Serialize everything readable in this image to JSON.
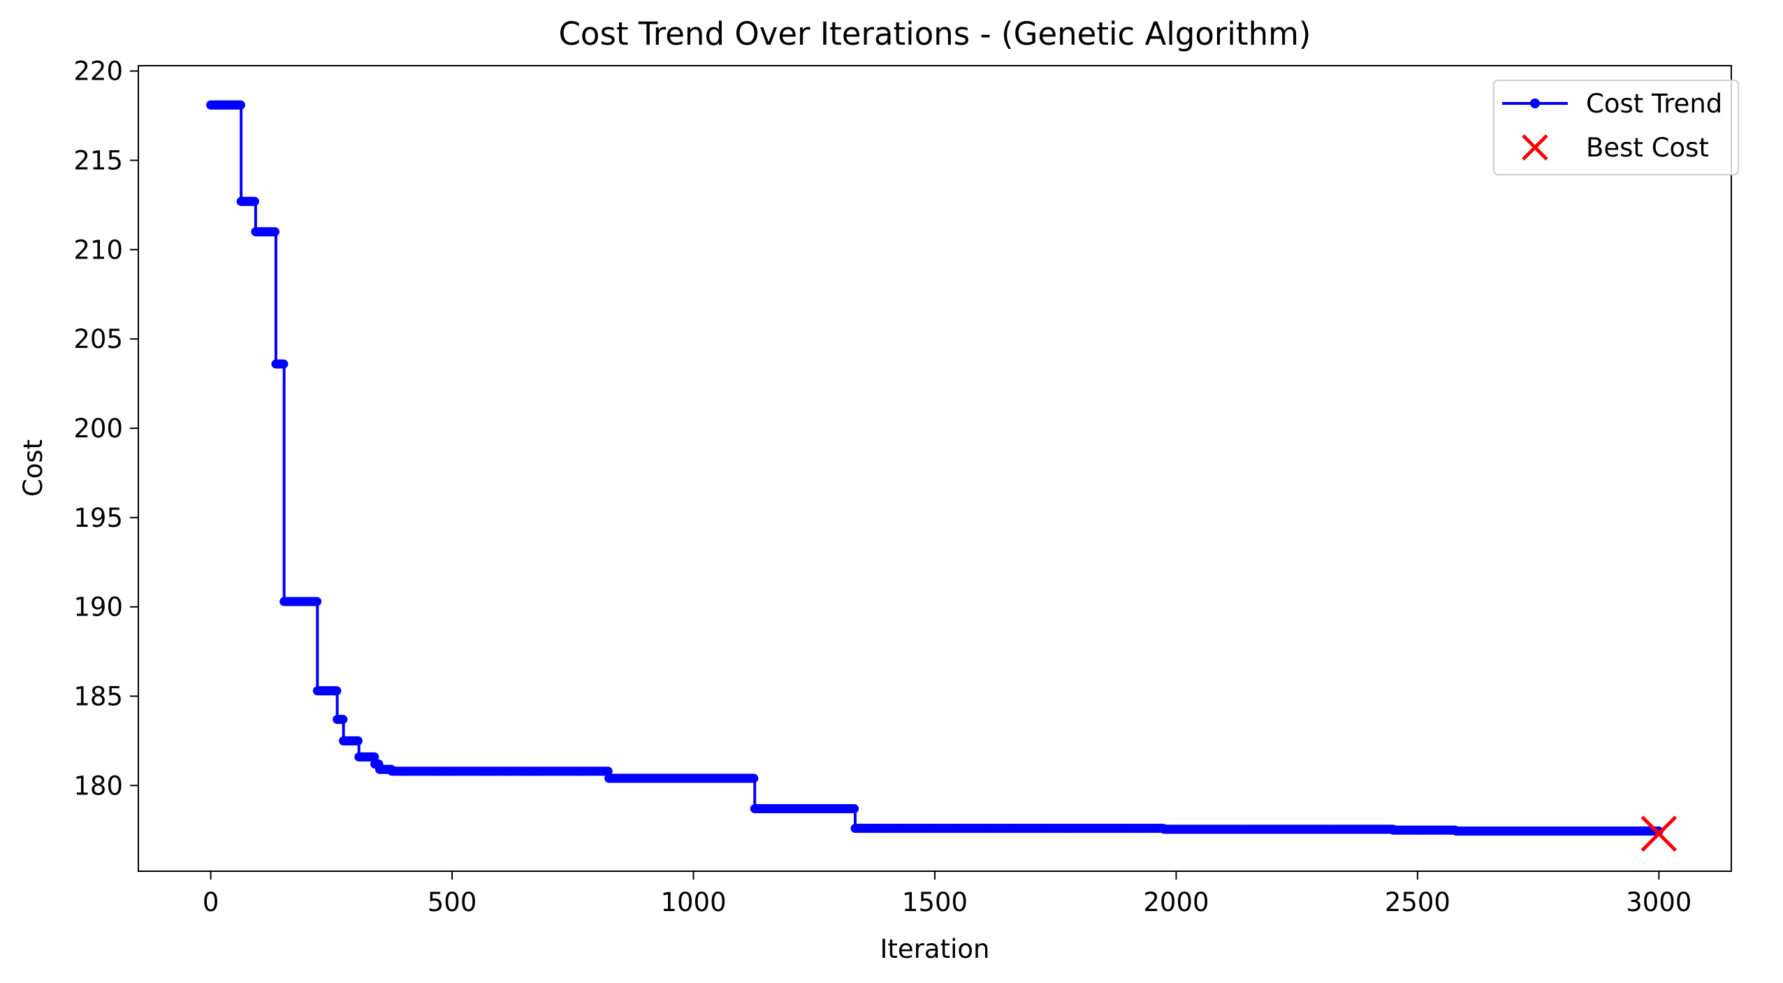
{
  "chart_data": {
    "type": "line",
    "title": "Cost Trend Over Iterations - (Genetic Algorithm)",
    "xlabel": "Iteration",
    "ylabel": "Cost",
    "xlim": [
      -150,
      3150
    ],
    "ylim": [
      175.2,
      220.3
    ],
    "xticks": [
      0,
      500,
      1000,
      1500,
      2000,
      2500,
      3000
    ],
    "yticks": [
      180,
      185,
      190,
      195,
      200,
      205,
      210,
      215,
      220
    ],
    "grid": false,
    "legend_position": "upper right",
    "series": [
      {
        "name": "Cost Trend",
        "color": "#0000ff",
        "style": "step-line-with-point-markers",
        "steps": [
          {
            "x": 0,
            "y": 218.1
          },
          {
            "x": 63,
            "y": 212.7
          },
          {
            "x": 93,
            "y": 211.0
          },
          {
            "x": 135,
            "y": 203.6
          },
          {
            "x": 152,
            "y": 190.3
          },
          {
            "x": 221,
            "y": 185.3
          },
          {
            "x": 262,
            "y": 183.7
          },
          {
            "x": 275,
            "y": 182.5
          },
          {
            "x": 307,
            "y": 181.6
          },
          {
            "x": 340,
            "y": 181.2
          },
          {
            "x": 350,
            "y": 180.9
          },
          {
            "x": 375,
            "y": 180.8
          },
          {
            "x": 825,
            "y": 180.4
          },
          {
            "x": 1127,
            "y": 178.7
          },
          {
            "x": 1335,
            "y": 177.6
          },
          {
            "x": 1975,
            "y": 177.55
          },
          {
            "x": 2450,
            "y": 177.5
          },
          {
            "x": 2580,
            "y": 177.45
          },
          {
            "x": 3000,
            "y": 177.45
          }
        ]
      },
      {
        "name": "Best Cost",
        "color": "#ff0000",
        "marker": "x",
        "points": [
          {
            "x": 3000,
            "y": 177.3
          }
        ]
      }
    ]
  }
}
